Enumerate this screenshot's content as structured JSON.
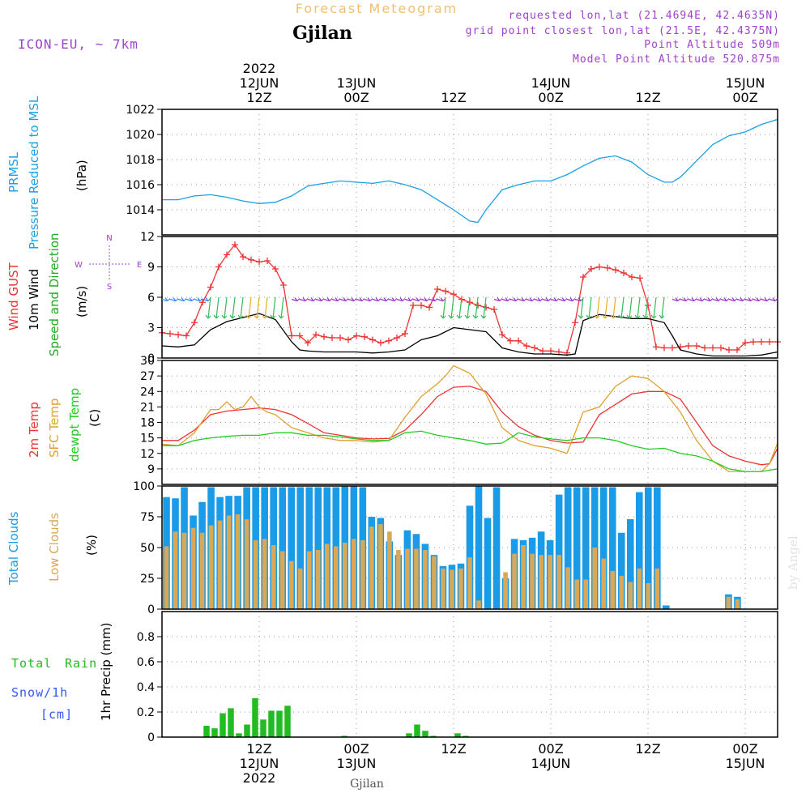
{
  "header": {
    "title": "Forecast Meteogram",
    "location": "Gjilan",
    "model": "ICON-EU, ~ 7km",
    "requested": "requested lon,lat (21.4694E, 42.4635N)",
    "grid_point": "grid point closest lon,lat (21.5E, 42.4375N)",
    "point_altitude": "Point Altitude 509m",
    "model_altitude": "Model Point Altitude 520.875m",
    "footer_location": "Gjilan",
    "watermark": "by Angel"
  },
  "colors": {
    "pressure": "#1aa0e6",
    "gust": "#ee3333",
    "wind": "#000000",
    "direction": "#22aa22",
    "temp2m": "#ee3333",
    "sfc_temp": "#e0a030",
    "dewpt": "#22cc22",
    "total_clouds": "#1a9be8",
    "low_clouds": "#d8a858",
    "rain": "#22bb22",
    "snow": "#3355ff",
    "legend_purple": "#a040d0"
  },
  "time_axis": {
    "top_labels": [
      {
        "t": 12,
        "lines": [
          "2022",
          "12JUN",
          "12Z"
        ]
      },
      {
        "t": 24,
        "lines": [
          "13JUN",
          "00Z"
        ]
      },
      {
        "t": 36,
        "lines": [
          "12Z"
        ]
      },
      {
        "t": 48,
        "lines": [
          "14JUN",
          "00Z"
        ]
      },
      {
        "t": 60,
        "lines": [
          "12Z"
        ]
      },
      {
        "t": 72,
        "lines": [
          "15JUN",
          "00Z"
        ]
      }
    ],
    "bottom_labels": [
      {
        "t": 12,
        "lines": [
          "12Z",
          "12JUN",
          "2022"
        ]
      },
      {
        "t": 24,
        "lines": [
          "00Z",
          "13JUN"
        ]
      },
      {
        "t": 36,
        "lines": [
          "12Z"
        ]
      },
      {
        "t": 48,
        "lines": [
          "00Z",
          "14JUN"
        ]
      },
      {
        "t": 60,
        "lines": [
          "12Z"
        ]
      },
      {
        "t": 72,
        "lines": [
          "00Z",
          "15JUN"
        ]
      }
    ]
  },
  "labels": {
    "pressure": [
      "PRMSL",
      "Pressure Reduced to MSL",
      "(hPa)"
    ],
    "wind": [
      "Wind GUST",
      "10m Wind",
      "Speed and Direction",
      "(m/s)"
    ],
    "compass": {
      "n": "N",
      "s": "S",
      "w": "W",
      "e": "E"
    },
    "temp": [
      "2m Temp",
      "SFC Temp",
      "dewpt Temp",
      "(C)"
    ],
    "clouds": [
      "Total Clouds",
      "Low Clouds",
      "(%)"
    ],
    "precip": [
      "Total",
      "Rain",
      "Snow/1h",
      "[cm]",
      "1hr Precip (mm)"
    ]
  },
  "chart_data": [
    {
      "type": "line",
      "panel": "pressure",
      "ylim": [
        1012,
        1022
      ],
      "yticks": [
        1014,
        1016,
        1018,
        1020,
        1022
      ],
      "series": [
        {
          "name": "PRMSL",
          "x": [
            0,
            2,
            4,
            6,
            8,
            10,
            12,
            14,
            16,
            18,
            20,
            22,
            24,
            26,
            28,
            30,
            32,
            34,
            36,
            38,
            39,
            40,
            42,
            44,
            46,
            48,
            50,
            52,
            54,
            56,
            58,
            60,
            62,
            63,
            64,
            66,
            68,
            70,
            72,
            74,
            76
          ],
          "values": [
            1014.8,
            1014.8,
            1015.1,
            1015.2,
            1015,
            1014.7,
            1014.5,
            1014.6,
            1015.1,
            1015.9,
            1016.1,
            1016.3,
            1016.2,
            1016.1,
            1016.3,
            1016,
            1015.6,
            1014.8,
            1014,
            1013.1,
            1013,
            1014,
            1015.6,
            1016,
            1016.3,
            1016.3,
            1016.8,
            1017.5,
            1018.1,
            1018.3,
            1017.8,
            1016.8,
            1016.2,
            1016.2,
            1016.6,
            1017.9,
            1019.2,
            1019.9,
            1020.2,
            1020.8,
            1021.2
          ]
        }
      ]
    },
    {
      "type": "line",
      "panel": "wind",
      "ylim": [
        0,
        12
      ],
      "yticks": [
        0,
        3,
        6,
        9,
        12
      ],
      "series": [
        {
          "name": "Wind GUST",
          "x": [
            0,
            1,
            2,
            3,
            4,
            5,
            6,
            7,
            8,
            9,
            10,
            11,
            12,
            13,
            14,
            15,
            16,
            17,
            18,
            19,
            20,
            21,
            22,
            23,
            24,
            25,
            26,
            27,
            28,
            29,
            30,
            31,
            32,
            33,
            34,
            35,
            36,
            37,
            38,
            39,
            40,
            41,
            42,
            43,
            44,
            45,
            46,
            47,
            48,
            49,
            50,
            51,
            52,
            53,
            54,
            55,
            56,
            57,
            58,
            59,
            60,
            61,
            62,
            63,
            64,
            65,
            66,
            67,
            68,
            69,
            70,
            71,
            72,
            73,
            74,
            75,
            76
          ],
          "values": [
            2.5,
            2.4,
            2.3,
            2.2,
            3.5,
            5.5,
            7,
            9,
            10.2,
            11.2,
            10,
            9.7,
            9.5,
            9.6,
            8.8,
            7.2,
            2.2,
            2.2,
            1.5,
            2.3,
            2.1,
            2.0,
            2.0,
            1.8,
            2.2,
            2.1,
            1.8,
            1.5,
            1.7,
            2.0,
            2.4,
            5.2,
            5.2,
            5.0,
            6.8,
            6.6,
            6.3,
            5.8,
            5.5,
            5.2,
            5.0,
            4.8,
            2.3,
            1.7,
            1.7,
            1.2,
            1.0,
            0.7,
            0.7,
            0.6,
            0.5,
            3.5,
            8.0,
            8.8,
            9.0,
            8.9,
            8.7,
            8.4,
            8.0,
            7.9,
            5.2,
            1.1,
            1.0,
            1.0,
            1.1,
            1.2,
            1.2,
            1.0,
            1.0,
            1.0,
            0.8,
            0.8,
            1.5,
            1.6,
            1.6,
            1.6,
            1.6
          ]
        },
        {
          "name": "10m Wind",
          "x": [
            0,
            2,
            4,
            6,
            8,
            10,
            12,
            14,
            16,
            17,
            18,
            20,
            22,
            24,
            26,
            28,
            30,
            32,
            34,
            36,
            38,
            40,
            42,
            44,
            46,
            48,
            50,
            51,
            52,
            54,
            56,
            58,
            60,
            62,
            63,
            64,
            66,
            68,
            70,
            72,
            74,
            76
          ],
          "values": [
            1.2,
            1.1,
            1.3,
            2.8,
            3.6,
            4.0,
            4.4,
            3.8,
            1.6,
            0.8,
            0.7,
            0.6,
            0.6,
            0.6,
            0.5,
            0.6,
            0.8,
            1.8,
            2.2,
            3.0,
            2.8,
            2.6,
            1.0,
            0.6,
            0.4,
            0.4,
            0.3,
            0.4,
            3.7,
            4.3,
            4.1,
            3.9,
            3.9,
            3.5,
            2.2,
            0.8,
            0.4,
            0.2,
            0.2,
            0.2,
            0.3,
            0.6
          ]
        }
      ]
    },
    {
      "type": "line",
      "panel": "temperature",
      "ylim": [
        6,
        30
      ],
      "yticks": [
        9,
        12,
        15,
        18,
        21,
        24,
        27,
        30
      ],
      "series": [
        {
          "name": "2m Temp",
          "x": [
            0,
            2,
            4,
            6,
            8,
            10,
            12,
            14,
            16,
            18,
            20,
            22,
            24,
            26,
            28,
            30,
            32,
            34,
            36,
            38,
            40,
            42,
            44,
            46,
            48,
            50,
            52,
            54,
            56,
            58,
            60,
            62,
            64,
            66,
            68,
            70,
            72,
            74,
            75,
            76
          ],
          "values": [
            14.5,
            14.5,
            16.5,
            19.5,
            20.2,
            20.5,
            20.8,
            20.5,
            19.5,
            17.8,
            16,
            15.5,
            15,
            14.8,
            14.9,
            16.5,
            19.5,
            23,
            24.8,
            25,
            24,
            20,
            17.2,
            15.5,
            14.5,
            14,
            14.2,
            19.5,
            21.5,
            23.5,
            24,
            24,
            22.5,
            18,
            13.5,
            11.5,
            10.5,
            9.8,
            10,
            13
          ]
        },
        {
          "name": "SFC Temp",
          "x": [
            0,
            2,
            4,
            6,
            7,
            8,
            9,
            10,
            11,
            12,
            13,
            14,
            16,
            18,
            20,
            22,
            24,
            26,
            28,
            30,
            32,
            34,
            35,
            36,
            38,
            40,
            42,
            44,
            46,
            48,
            50,
            52,
            54,
            56,
            58,
            60,
            62,
            64,
            66,
            68,
            70,
            72,
            74,
            75,
            76
          ],
          "values": [
            13.8,
            13.5,
            16,
            20.5,
            20.5,
            22,
            20.5,
            21,
            23,
            21,
            20,
            19.5,
            17,
            16,
            15,
            14.5,
            14.5,
            14.2,
            14.5,
            19,
            23,
            25.5,
            27,
            29,
            27.5,
            23.5,
            17,
            14.5,
            13.5,
            13,
            12,
            20,
            21,
            25,
            27,
            26.5,
            24,
            20,
            14.5,
            10.5,
            8.5,
            8.5,
            8.5,
            10,
            14
          ]
        },
        {
          "name": "dewpt Temp",
          "x": [
            0,
            2,
            4,
            6,
            8,
            10,
            12,
            14,
            16,
            18,
            20,
            22,
            24,
            26,
            28,
            30,
            32,
            34,
            36,
            38,
            40,
            42,
            44,
            46,
            48,
            50,
            52,
            54,
            56,
            58,
            60,
            62,
            64,
            66,
            68,
            70,
            72,
            74,
            76
          ],
          "values": [
            13.5,
            13.5,
            14.5,
            15,
            15.3,
            15.5,
            15.5,
            16,
            16,
            15.5,
            15.5,
            15.2,
            14.8,
            14.5,
            14.5,
            16,
            16.3,
            15.5,
            15,
            14.5,
            13.8,
            14,
            16,
            15.2,
            14.8,
            14.5,
            15,
            15,
            14.5,
            13.5,
            12.8,
            13,
            12,
            11.5,
            10.5,
            9,
            8.5,
            8.5,
            9
          ]
        }
      ]
    },
    {
      "type": "bar",
      "panel": "clouds",
      "ylim": [
        0,
        100
      ],
      "yticks": [
        0,
        25,
        50,
        75,
        100
      ],
      "series": [
        {
          "name": "Total Clouds",
          "values": [
            91,
            90,
            99,
            76,
            87,
            99,
            91,
            92,
            92,
            99,
            99,
            99,
            99,
            99,
            99,
            99,
            99,
            99,
            99,
            99,
            100,
            100,
            99,
            75,
            74,
            55,
            44,
            64,
            61,
            53,
            44,
            35,
            36,
            37,
            84,
            100,
            74,
            99,
            25,
            57,
            56,
            58,
            63,
            56,
            93,
            99,
            99,
            99,
            99,
            99,
            99,
            62,
            73,
            95,
            99,
            99,
            3,
            0,
            0,
            0,
            0,
            0,
            0,
            12,
            10,
            0,
            0,
            0,
            0
          ]
        },
        {
          "name": "Low Clouds",
          "values": [
            51,
            63,
            62,
            66,
            62,
            68,
            72,
            76,
            77,
            73,
            56,
            57,
            52,
            47,
            39,
            33,
            47,
            48,
            53,
            51,
            54,
            57,
            56,
            67,
            69,
            63,
            48,
            49,
            49,
            48,
            43,
            33,
            32,
            33,
            42,
            7,
            0,
            0,
            30,
            45,
            52,
            45,
            44,
            44,
            44,
            34,
            24,
            24,
            50,
            41,
            31,
            27,
            22,
            33,
            21,
            33,
            0,
            0,
            0,
            0,
            0,
            0,
            0,
            10,
            8,
            0,
            0,
            0,
            0
          ]
        }
      ]
    },
    {
      "type": "bar",
      "panel": "precipitation",
      "ylim": [
        0,
        1
      ],
      "yticks": [
        0,
        0.2,
        0.4,
        0.6,
        0.8
      ],
      "series": [
        {
          "name": "1hr Precip (mm)",
          "x": [
            5,
            6,
            7,
            8,
            9,
            10,
            11,
            12,
            13,
            14,
            15,
            22,
            30,
            31,
            32,
            33,
            36,
            37
          ],
          "values": [
            0.09,
            0.07,
            0.19,
            0.23,
            0.03,
            0.1,
            0.31,
            0.14,
            0.21,
            0.21,
            0.25,
            0.01,
            0.03,
            0.1,
            0.05,
            0.01,
            0.03,
            0.01
          ]
        }
      ]
    }
  ]
}
